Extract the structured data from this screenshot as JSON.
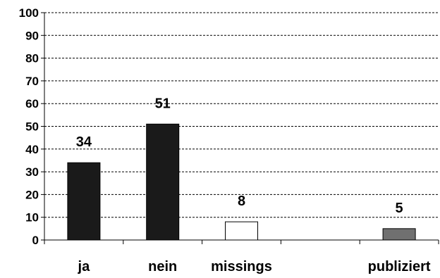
{
  "chart_data": {
    "type": "bar",
    "categories": [
      "ja",
      "nein",
      "missings",
      "",
      "publiziert"
    ],
    "values": [
      34,
      51,
      8,
      null,
      5
    ],
    "data_labels": [
      "34",
      "51",
      "8",
      "",
      "5"
    ],
    "bar_colors": [
      "#1a1a1a",
      "#1a1a1a",
      "#ffffff",
      null,
      "#707070"
    ],
    "ylim": [
      0,
      100
    ],
    "yticks": [
      0,
      10,
      20,
      30,
      40,
      50,
      60,
      70,
      80,
      90,
      100
    ],
    "ytick_labels": [
      "0",
      "10",
      "20",
      "30",
      "40",
      "50",
      "60",
      "70",
      "80",
      "90",
      "100"
    ],
    "grid": "horizontal-dashed",
    "title": "",
    "xlabel": "",
    "ylabel": ""
  }
}
